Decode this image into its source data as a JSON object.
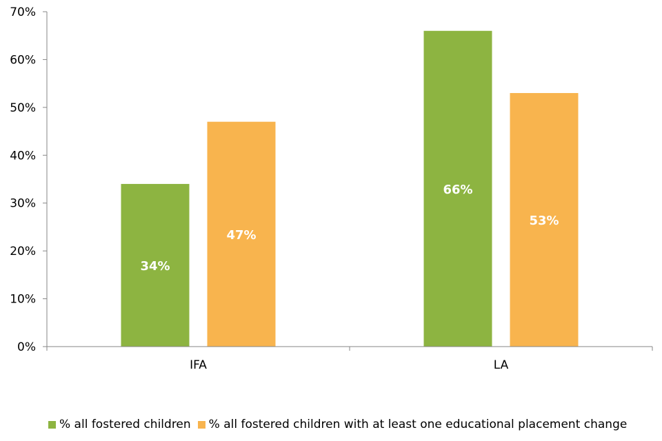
{
  "chart_data": {
    "type": "bar",
    "categories": [
      "IFA",
      "LA"
    ],
    "series": [
      {
        "name": "% all fostered children",
        "values": [
          34,
          66
        ],
        "color": "#8db441",
        "data_labels": [
          "34%",
          "66%"
        ]
      },
      {
        "name": "% all fostered children with at least one educational placement change",
        "values": [
          47,
          53
        ],
        "color": "#f8b44e",
        "data_labels": [
          "47%",
          "53%"
        ]
      }
    ],
    "ylim": [
      0,
      70
    ],
    "yticks": [
      0,
      10,
      20,
      30,
      40,
      50,
      60,
      70
    ],
    "ytick_labels": [
      "0%",
      "10%",
      "20%",
      "30%",
      "40%",
      "50%",
      "60%",
      "70%"
    ],
    "axis_color": "#868686",
    "grid": false,
    "legend_position": "bottom"
  }
}
